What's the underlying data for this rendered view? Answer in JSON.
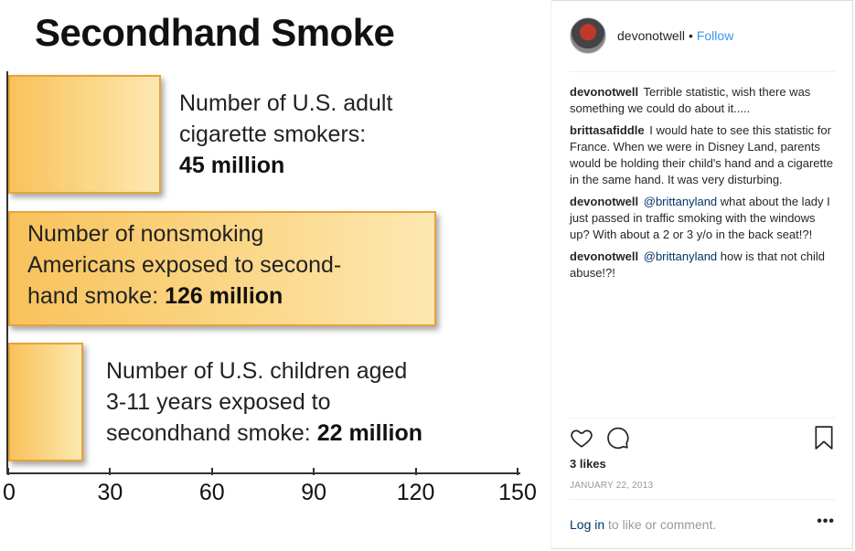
{
  "post_image": {
    "title": "Secondhand Smoke",
    "bars": [
      {
        "value": 45,
        "label_lines": [
          "Number of U.S. adult",
          "cigarette smokers:"
        ],
        "bold": "45 million"
      },
      {
        "value": 126,
        "label_lines": [
          "Number of nonsmoking",
          "Americans exposed to second-"
        ],
        "label_last": "hand smoke: ",
        "bold": "126 million"
      },
      {
        "value": 22,
        "label_lines": [
          "Number of U.S. children aged",
          "3-11 years exposed to"
        ],
        "label_last": "secondhand smoke: ",
        "bold": "22 million"
      }
    ],
    "x_ticks": [
      "0",
      "30",
      "60",
      "90",
      "120",
      "150"
    ],
    "x_max": 150
  },
  "sidebar": {
    "username": "devonotwell",
    "separator": "•",
    "follow_label": "Follow",
    "comments": [
      {
        "author": "devonotwell",
        "text": "Terrible statistic, wish there was something we could do about it....."
      },
      {
        "author": "brittasafiddle",
        "text": "I would hate to see this statistic for France. When we were in Disney Land, parents would be holding their child's hand and a cigarette in the same hand. It was very disturbing."
      },
      {
        "author": "devonotwell",
        "mention": "@brittanyland",
        "text": "what about the lady I just passed in traffic smoking with the windows up? With about a 2 or 3 y/o in the back seat!?!"
      },
      {
        "author": "devonotwell",
        "mention": "@brittanyland",
        "text": "how is that not child abuse!?!"
      }
    ],
    "likes": "3 likes",
    "date": "JANUARY 22, 2013",
    "login_link": "Log in",
    "login_suffix": "to like or comment.",
    "more_label": "•••",
    "icons": [
      "heart-icon",
      "comment-icon",
      "bookmark-icon"
    ]
  }
}
